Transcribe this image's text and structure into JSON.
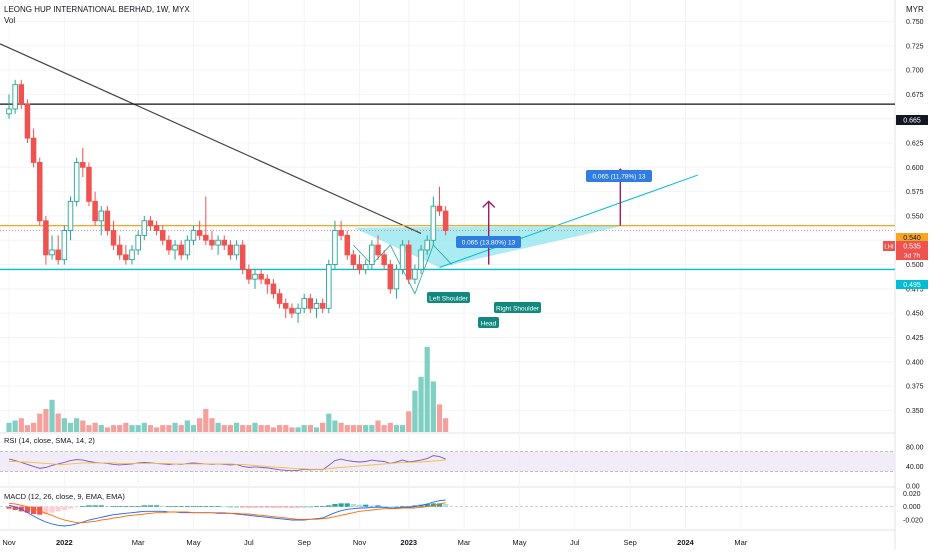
{
  "header": {
    "title": "LEONG HUP INTERNATIONAL BERHAD, 1W, MYX",
    "subtitle": "Vol",
    "currency": "MYR"
  },
  "colors": {
    "up": "#26a69a",
    "down": "#ef5350",
    "vol_up": "#7fcfc3",
    "vol_down": "#f4a09c",
    "trend_line": "#444444",
    "support": "#00bcd4",
    "resistance": "#111111",
    "neckline": "#f5a623",
    "wedge_fill": "#8fe4ee",
    "target_arrow": "#a0196b",
    "badge_blue": "#2f7de1",
    "label_teal": "#11897f",
    "rsi_line": "#7e57c2",
    "rsi_ma": "#f0c040",
    "macd_line": "#2962ff",
    "signal_line": "#ff6d00"
  },
  "chart_data": [
    {
      "type": "candlestick",
      "title": "LEONG HUP INTERNATIONAL BERHAD, 1W, MYX",
      "ylabel": "MYR",
      "ylim": [
        0.335,
        0.77
      ],
      "y_ticks": [
        0.75,
        0.725,
        0.7,
        0.675,
        0.65,
        0.625,
        0.6,
        0.575,
        0.55,
        0.525,
        0.5,
        0.475,
        0.45,
        0.425,
        0.4,
        0.375,
        0.35
      ],
      "x_ticks": [
        "Nov",
        "2022",
        "Mar",
        "May",
        "Jul",
        "Sep",
        "Nov",
        "2023",
        "Mar",
        "May",
        "Jul",
        "Sep",
        "2024",
        "Mar"
      ],
      "x_tick_weeks": [
        0,
        9,
        21,
        30,
        39,
        48,
        57,
        65,
        74,
        83,
        92,
        101,
        110,
        119
      ],
      "candles": [
        {
          "o": 0.655,
          "h": 0.675,
          "l": 0.65,
          "c": 0.66
        },
        {
          "o": 0.66,
          "h": 0.69,
          "l": 0.655,
          "c": 0.685
        },
        {
          "o": 0.685,
          "h": 0.69,
          "l": 0.66,
          "c": 0.665
        },
        {
          "o": 0.665,
          "h": 0.67,
          "l": 0.625,
          "c": 0.63
        },
        {
          "o": 0.63,
          "h": 0.64,
          "l": 0.6,
          "c": 0.605
        },
        {
          "o": 0.605,
          "h": 0.61,
          "l": 0.54,
          "c": 0.545
        },
        {
          "o": 0.545,
          "h": 0.55,
          "l": 0.5,
          "c": 0.51
        },
        {
          "o": 0.51,
          "h": 0.53,
          "l": 0.505,
          "c": 0.515
        },
        {
          "o": 0.515,
          "h": 0.53,
          "l": 0.5,
          "c": 0.505
        },
        {
          "o": 0.505,
          "h": 0.54,
          "l": 0.5,
          "c": 0.535
        },
        {
          "o": 0.535,
          "h": 0.57,
          "l": 0.525,
          "c": 0.565
        },
        {
          "o": 0.565,
          "h": 0.61,
          "l": 0.56,
          "c": 0.605
        },
        {
          "o": 0.605,
          "h": 0.62,
          "l": 0.59,
          "c": 0.6
        },
        {
          "o": 0.6,
          "h": 0.605,
          "l": 0.56,
          "c": 0.565
        },
        {
          "o": 0.565,
          "h": 0.575,
          "l": 0.54,
          "c": 0.545
        },
        {
          "o": 0.545,
          "h": 0.56,
          "l": 0.53,
          "c": 0.555
        },
        {
          "o": 0.555,
          "h": 0.56,
          "l": 0.53,
          "c": 0.535
        },
        {
          "o": 0.535,
          "h": 0.545,
          "l": 0.515,
          "c": 0.52
        },
        {
          "o": 0.52,
          "h": 0.53,
          "l": 0.505,
          "c": 0.51
        },
        {
          "o": 0.51,
          "h": 0.52,
          "l": 0.5,
          "c": 0.505
        },
        {
          "o": 0.505,
          "h": 0.52,
          "l": 0.5,
          "c": 0.515
        },
        {
          "o": 0.515,
          "h": 0.535,
          "l": 0.51,
          "c": 0.53
        },
        {
          "o": 0.53,
          "h": 0.55,
          "l": 0.525,
          "c": 0.545
        },
        {
          "o": 0.545,
          "h": 0.55,
          "l": 0.535,
          "c": 0.54
        },
        {
          "o": 0.54,
          "h": 0.545,
          "l": 0.53,
          "c": 0.535
        },
        {
          "o": 0.535,
          "h": 0.54,
          "l": 0.52,
          "c": 0.525
        },
        {
          "o": 0.525,
          "h": 0.53,
          "l": 0.51,
          "c": 0.515
        },
        {
          "o": 0.515,
          "h": 0.525,
          "l": 0.505,
          "c": 0.52
        },
        {
          "o": 0.52,
          "h": 0.525,
          "l": 0.505,
          "c": 0.51
        },
        {
          "o": 0.51,
          "h": 0.53,
          "l": 0.505,
          "c": 0.525
        },
        {
          "o": 0.525,
          "h": 0.54,
          "l": 0.52,
          "c": 0.535
        },
        {
          "o": 0.535,
          "h": 0.545,
          "l": 0.525,
          "c": 0.53
        },
        {
          "o": 0.53,
          "h": 0.57,
          "l": 0.52,
          "c": 0.525
        },
        {
          "o": 0.525,
          "h": 0.535,
          "l": 0.515,
          "c": 0.52
        },
        {
          "o": 0.52,
          "h": 0.53,
          "l": 0.51,
          "c": 0.525
        },
        {
          "o": 0.525,
          "h": 0.53,
          "l": 0.515,
          "c": 0.52
        },
        {
          "o": 0.52,
          "h": 0.525,
          "l": 0.505,
          "c": 0.51
        },
        {
          "o": 0.51,
          "h": 0.525,
          "l": 0.505,
          "c": 0.52
        },
        {
          "o": 0.52,
          "h": 0.525,
          "l": 0.49,
          "c": 0.495
        },
        {
          "o": 0.495,
          "h": 0.5,
          "l": 0.48,
          "c": 0.485
        },
        {
          "o": 0.485,
          "h": 0.495,
          "l": 0.475,
          "c": 0.49
        },
        {
          "o": 0.49,
          "h": 0.495,
          "l": 0.48,
          "c": 0.485
        },
        {
          "o": 0.485,
          "h": 0.49,
          "l": 0.47,
          "c": 0.48
        },
        {
          "o": 0.48,
          "h": 0.485,
          "l": 0.465,
          "c": 0.47
        },
        {
          "o": 0.47,
          "h": 0.475,
          "l": 0.455,
          "c": 0.46
        },
        {
          "o": 0.46,
          "h": 0.465,
          "l": 0.445,
          "c": 0.455
        },
        {
          "o": 0.455,
          "h": 0.46,
          "l": 0.445,
          "c": 0.45
        },
        {
          "o": 0.45,
          "h": 0.46,
          "l": 0.44,
          "c": 0.455
        },
        {
          "o": 0.455,
          "h": 0.47,
          "l": 0.45,
          "c": 0.465
        },
        {
          "o": 0.465,
          "h": 0.47,
          "l": 0.45,
          "c": 0.455
        },
        {
          "o": 0.455,
          "h": 0.465,
          "l": 0.445,
          "c": 0.46
        },
        {
          "o": 0.46,
          "h": 0.465,
          "l": 0.45,
          "c": 0.455
        },
        {
          "o": 0.455,
          "h": 0.505,
          "l": 0.45,
          "c": 0.5
        },
        {
          "o": 0.5,
          "h": 0.545,
          "l": 0.495,
          "c": 0.535
        },
        {
          "o": 0.535,
          "h": 0.545,
          "l": 0.525,
          "c": 0.53
        },
        {
          "o": 0.53,
          "h": 0.535,
          "l": 0.505,
          "c": 0.51
        },
        {
          "o": 0.51,
          "h": 0.515,
          "l": 0.495,
          "c": 0.5
        },
        {
          "o": 0.5,
          "h": 0.51,
          "l": 0.49,
          "c": 0.495
        },
        {
          "o": 0.495,
          "h": 0.505,
          "l": 0.49,
          "c": 0.5
        },
        {
          "o": 0.5,
          "h": 0.525,
          "l": 0.495,
          "c": 0.52
        },
        {
          "o": 0.52,
          "h": 0.53,
          "l": 0.505,
          "c": 0.51
        },
        {
          "o": 0.51,
          "h": 0.515,
          "l": 0.495,
          "c": 0.5
        },
        {
          "o": 0.5,
          "h": 0.505,
          "l": 0.47,
          "c": 0.475
        },
        {
          "o": 0.475,
          "h": 0.5,
          "l": 0.465,
          "c": 0.495
        },
        {
          "o": 0.495,
          "h": 0.525,
          "l": 0.49,
          "c": 0.52
        },
        {
          "o": 0.52,
          "h": 0.525,
          "l": 0.48,
          "c": 0.485
        },
        {
          "o": 0.485,
          "h": 0.5,
          "l": 0.48,
          "c": 0.495
        },
        {
          "o": 0.495,
          "h": 0.52,
          "l": 0.49,
          "c": 0.515
        },
        {
          "o": 0.515,
          "h": 0.53,
          "l": 0.51,
          "c": 0.525
        },
        {
          "o": 0.525,
          "h": 0.57,
          "l": 0.52,
          "c": 0.56
        },
        {
          "o": 0.56,
          "h": 0.58,
          "l": 0.55,
          "c": 0.555
        },
        {
          "o": 0.555,
          "h": 0.56,
          "l": 0.53,
          "c": 0.535
        }
      ],
      "volume": [
        4,
        5,
        6,
        3,
        4,
        8,
        10,
        14,
        8,
        6,
        4,
        6,
        5,
        3,
        4,
        3,
        2,
        3,
        3,
        4,
        3,
        3,
        4,
        3,
        2,
        3,
        3,
        4,
        3,
        5,
        3,
        6,
        10,
        6,
        4,
        3,
        3,
        4,
        3,
        3,
        4,
        3,
        3,
        2,
        3,
        3,
        2,
        2,
        3,
        3,
        2,
        4,
        8,
        5,
        4,
        3,
        3,
        3,
        3,
        3,
        5,
        3,
        4,
        3,
        3,
        9,
        18,
        24,
        37,
        22,
        12,
        6
      ],
      "horizontal_levels": [
        {
          "name": "resistance",
          "value": 0.665,
          "label": "0.665"
        },
        {
          "name": "neckline",
          "value": 0.54,
          "label": "0.540"
        },
        {
          "name": "support",
          "value": 0.495,
          "label": "0.495"
        }
      ],
      "last_price": {
        "symbol": "LHI",
        "value": "0.535",
        "countdown": "3d 7h"
      },
      "annotations": {
        "left_shoulder": "Left Shoulder",
        "head": "Head",
        "right_shoulder": "Right Shoulder",
        "measure_1": "0.065 (13.80%) 13",
        "measure_2": "0.065 (11.78%) 13"
      }
    },
    {
      "type": "line",
      "title": "RSI (14, close, SMA, 14, 2)",
      "ylim": [
        0,
        100
      ],
      "y_ticks": [
        "80.00",
        "40.00",
        "0.00"
      ],
      "series": [
        {
          "name": "RSI",
          "values": [
            55,
            52,
            48,
            44,
            40,
            36,
            38,
            42,
            45,
            48,
            52,
            54,
            53,
            50,
            48,
            47,
            46,
            44,
            43,
            44,
            45,
            47,
            48,
            47,
            46,
            45,
            44,
            45,
            44,
            46,
            47,
            46,
            45,
            44,
            45,
            44,
            43,
            44,
            40,
            38,
            39,
            38,
            37,
            35,
            33,
            32,
            31,
            32,
            34,
            33,
            34,
            33,
            42,
            52,
            55,
            52,
            50,
            49,
            50,
            53,
            51,
            50,
            46,
            49,
            53,
            49,
            51,
            53,
            56,
            62,
            60,
            55
          ]
        },
        {
          "name": "SMA",
          "values": [
            50,
            50,
            49,
            49,
            48,
            47,
            46,
            45,
            44,
            44,
            45,
            46,
            47,
            47,
            47,
            47,
            47,
            47,
            46,
            46,
            46,
            46,
            46,
            46,
            46,
            46,
            46,
            45,
            45,
            45,
            45,
            45,
            45,
            45,
            45,
            45,
            45,
            44,
            44,
            43,
            42,
            41,
            40,
            39,
            38,
            37,
            36,
            35,
            35,
            34,
            34,
            34,
            35,
            37,
            38,
            39,
            40,
            41,
            42,
            43,
            44,
            45,
            46,
            47,
            48,
            48,
            49,
            49,
            50,
            51,
            52,
            53
          ]
        }
      ]
    },
    {
      "type": "bar",
      "title": "MACD (12, 26, close, 9, EMA, EMA)",
      "y_ticks": [
        "0.020",
        "0.000",
        "-0.020"
      ],
      "ylim": [
        -0.035,
        0.025
      ],
      "series": [
        {
          "name": "Histogram",
          "values": [
            -0.003,
            -0.005,
            -0.007,
            -0.009,
            -0.011,
            -0.012,
            -0.011,
            -0.009,
            -0.007,
            -0.005,
            -0.003,
            -0.001,
            0.001,
            0.002,
            0.002,
            0.002,
            0.001,
            0.001,
            0.001,
            0.001,
            0.001,
            0.001,
            0.002,
            0.002,
            0.002,
            0.001,
            0.001,
            0.001,
            0.001,
            0.001,
            0.001,
            0.001,
            0.001,
            0.001,
            0.001,
            0.0,
            0.0,
            0.0,
            -0.001,
            -0.001,
            -0.001,
            -0.001,
            -0.001,
            -0.001,
            -0.001,
            -0.001,
            -0.001,
            -0.001,
            0.0,
            0.0,
            0.001,
            0.001,
            0.002,
            0.004,
            0.005,
            0.005,
            0.004,
            0.003,
            0.003,
            0.002,
            0.002,
            0.001,
            0.0,
            0.0,
            0.001,
            0.001,
            0.002,
            0.003,
            0.004,
            0.005,
            0.005,
            0.004
          ]
        },
        {
          "name": "MACD",
          "values": [
            0.002,
            0.0,
            -0.004,
            -0.009,
            -0.014,
            -0.019,
            -0.023,
            -0.026,
            -0.028,
            -0.029,
            -0.028,
            -0.026,
            -0.023,
            -0.02,
            -0.018,
            -0.016,
            -0.014,
            -0.012,
            -0.011,
            -0.01,
            -0.009,
            -0.008,
            -0.007,
            -0.007,
            -0.007,
            -0.007,
            -0.008,
            -0.008,
            -0.009,
            -0.009,
            -0.009,
            -0.009,
            -0.009,
            -0.009,
            -0.01,
            -0.01,
            -0.01,
            -0.011,
            -0.012,
            -0.013,
            -0.014,
            -0.015,
            -0.016,
            -0.017,
            -0.018,
            -0.019,
            -0.02,
            -0.02,
            -0.02,
            -0.019,
            -0.018,
            -0.017,
            -0.013,
            -0.009,
            -0.006,
            -0.004,
            -0.003,
            -0.002,
            -0.002,
            -0.001,
            -0.001,
            -0.001,
            -0.002,
            -0.002,
            -0.001,
            -0.001,
            0.0,
            0.002,
            0.004,
            0.007,
            0.009,
            0.01
          ]
        },
        {
          "name": "Signal",
          "values": [
            0.005,
            0.004,
            0.002,
            0.0,
            -0.003,
            -0.006,
            -0.01,
            -0.013,
            -0.017,
            -0.02,
            -0.022,
            -0.024,
            -0.024,
            -0.023,
            -0.022,
            -0.02,
            -0.019,
            -0.017,
            -0.016,
            -0.014,
            -0.013,
            -0.012,
            -0.011,
            -0.01,
            -0.009,
            -0.009,
            -0.008,
            -0.008,
            -0.008,
            -0.008,
            -0.009,
            -0.009,
            -0.009,
            -0.009,
            -0.009,
            -0.009,
            -0.01,
            -0.01,
            -0.011,
            -0.011,
            -0.012,
            -0.013,
            -0.014,
            -0.015,
            -0.016,
            -0.017,
            -0.018,
            -0.019,
            -0.019,
            -0.019,
            -0.019,
            -0.018,
            -0.017,
            -0.015,
            -0.013,
            -0.011,
            -0.009,
            -0.007,
            -0.006,
            -0.005,
            -0.004,
            -0.003,
            -0.003,
            -0.003,
            -0.002,
            -0.002,
            -0.002,
            -0.001,
            0.0,
            0.002,
            0.004,
            0.006
          ]
        }
      ]
    }
  ]
}
